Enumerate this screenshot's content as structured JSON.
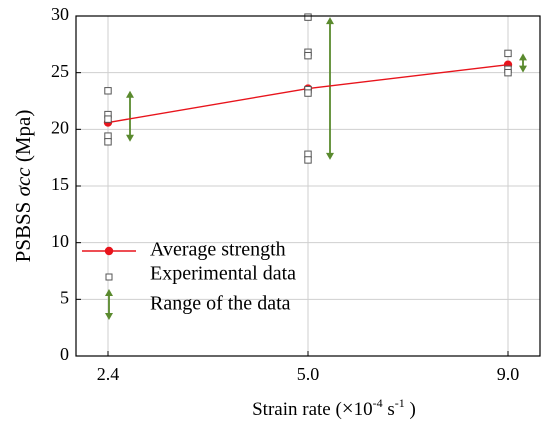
{
  "chart_data": {
    "type": "scatter",
    "title": "",
    "xlabel": {
      "prefix": "Strain rate (",
      "times": "×",
      "base": "10",
      "exp1": "-4",
      "mid": " s",
      "exp2": "-1",
      "suffix": " )"
    },
    "ylabel": {
      "prefix": "PSBSS ",
      "symbol": "σcc",
      "suffix": " (Mpa)"
    },
    "categories": [
      "2.4",
      "5.0",
      "9.0"
    ],
    "ylim": [
      0,
      30
    ],
    "yticks": [
      "0",
      "5",
      "10",
      "15",
      "20",
      "25",
      "30"
    ],
    "grid": true,
    "legend_position": "bottom-left",
    "colors": {
      "average": "#e8141c",
      "experimental": "#555555",
      "range": "#5a8a2e",
      "grid": "#cfcfcf"
    },
    "series": [
      {
        "name": "Average strength",
        "type": "line",
        "values": [
          20.6,
          23.6,
          25.7
        ]
      },
      {
        "name": "Experimental data",
        "type": "scatter",
        "points": [
          {
            "x": "2.4",
            "y": 23.4
          },
          {
            "x": "2.4",
            "y": 21.3
          },
          {
            "x": "2.4",
            "y": 20.9
          },
          {
            "x": "2.4",
            "y": 19.4
          },
          {
            "x": "2.4",
            "y": 18.9
          },
          {
            "x": "5.0",
            "y": 29.9
          },
          {
            "x": "5.0",
            "y": 26.8
          },
          {
            "x": "5.0",
            "y": 26.5
          },
          {
            "x": "5.0",
            "y": 23.5
          },
          {
            "x": "5.0",
            "y": 23.2
          },
          {
            "x": "5.0",
            "y": 17.8
          },
          {
            "x": "5.0",
            "y": 17.3
          },
          {
            "x": "9.0",
            "y": 26.7
          },
          {
            "x": "9.0",
            "y": 25.3
          },
          {
            "x": "9.0",
            "y": 25.0
          }
        ]
      },
      {
        "name": "Range of the data",
        "type": "range",
        "ranges": [
          {
            "x": "2.4",
            "min": 18.9,
            "max": 23.4
          },
          {
            "x": "5.0",
            "min": 17.3,
            "max": 29.9
          },
          {
            "x": "9.0",
            "min": 25.0,
            "max": 26.7
          }
        ]
      }
    ]
  }
}
